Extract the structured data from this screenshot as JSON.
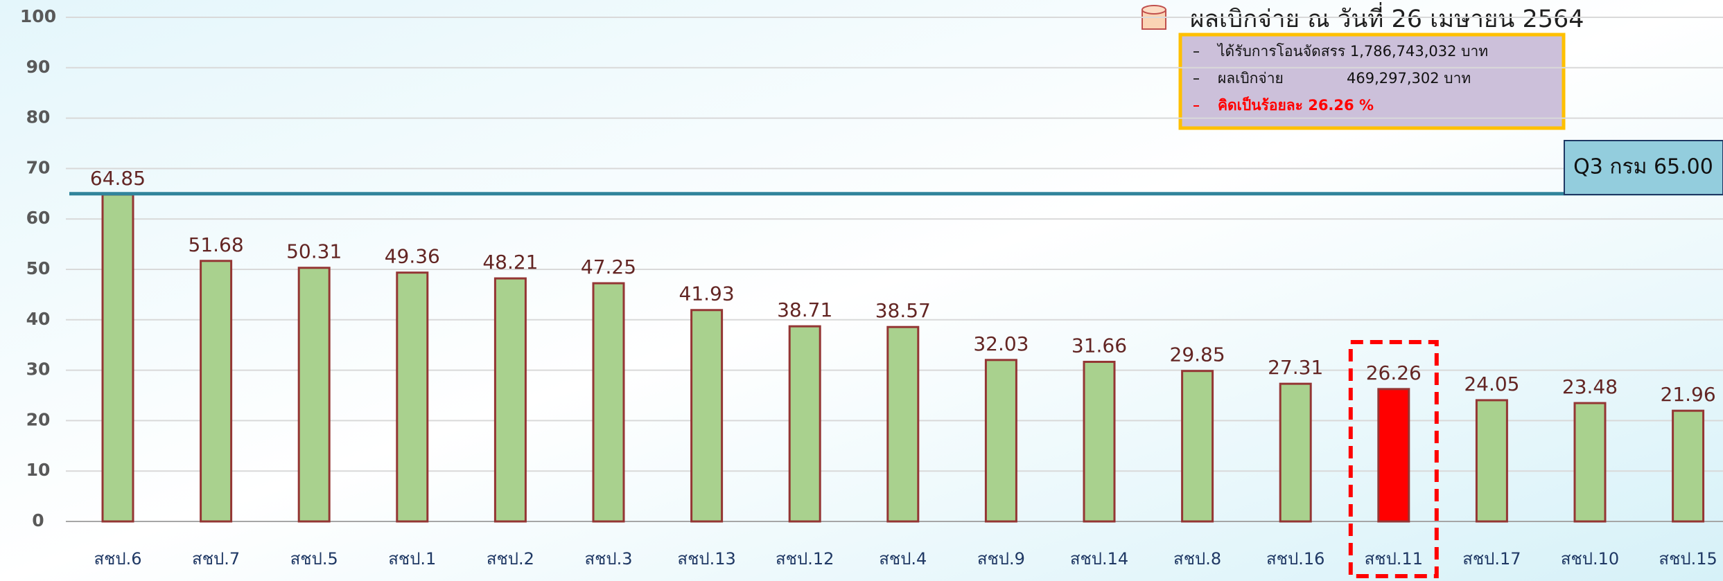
{
  "chart_data": {
    "type": "bar",
    "legend_title": "ผลเบิกจ่าย ณ วันที่ 26 เมษายน 2564",
    "info_lines": [
      [
        "ได้รับการโอนจัดสรร 1,786,743,032 บาท"
      ],
      [
        "ผลเบิกจ่าย",
        "469,297,302 บาท"
      ],
      [
        "คิดเป็นร้อยละ 26.26 %"
      ]
    ],
    "categories": [
      "สชป.6",
      "สชป.7",
      "สชป.5",
      "สชป.1",
      "สชป.2",
      "สชป.3",
      "สชป.13",
      "สชป.12",
      "สชป.4",
      "สชป.9",
      "สชป.14",
      "สชป.8",
      "สชป.16",
      "สชป.11",
      "สชป.17",
      "สชป.10",
      "สชป.15"
    ],
    "values": [
      64.85,
      51.68,
      50.31,
      49.36,
      48.21,
      47.25,
      41.93,
      38.71,
      38.57,
      32.03,
      31.66,
      29.85,
      27.31,
      26.26,
      24.05,
      23.48,
      21.96
    ],
    "colors": [
      "#a9d18e",
      "#a9d18e",
      "#a9d18e",
      "#a9d18e",
      "#a9d18e",
      "#a9d18e",
      "#a9d18e",
      "#a9d18e",
      "#a9d18e",
      "#a9d18e",
      "#a9d18e",
      "#a9d18e",
      "#a9d18e",
      "#ff0000",
      "#a9d18e",
      "#a9d18e",
      "#a9d18e"
    ],
    "reference_line": {
      "value": 65,
      "label": "Q3 กรม 65.00",
      "color": "#31849b"
    },
    "ylim": [
      0,
      100
    ],
    "yticks": [
      0,
      10,
      20,
      30,
      40,
      50,
      60,
      70,
      80,
      90,
      100
    ],
    "grid": true
  }
}
